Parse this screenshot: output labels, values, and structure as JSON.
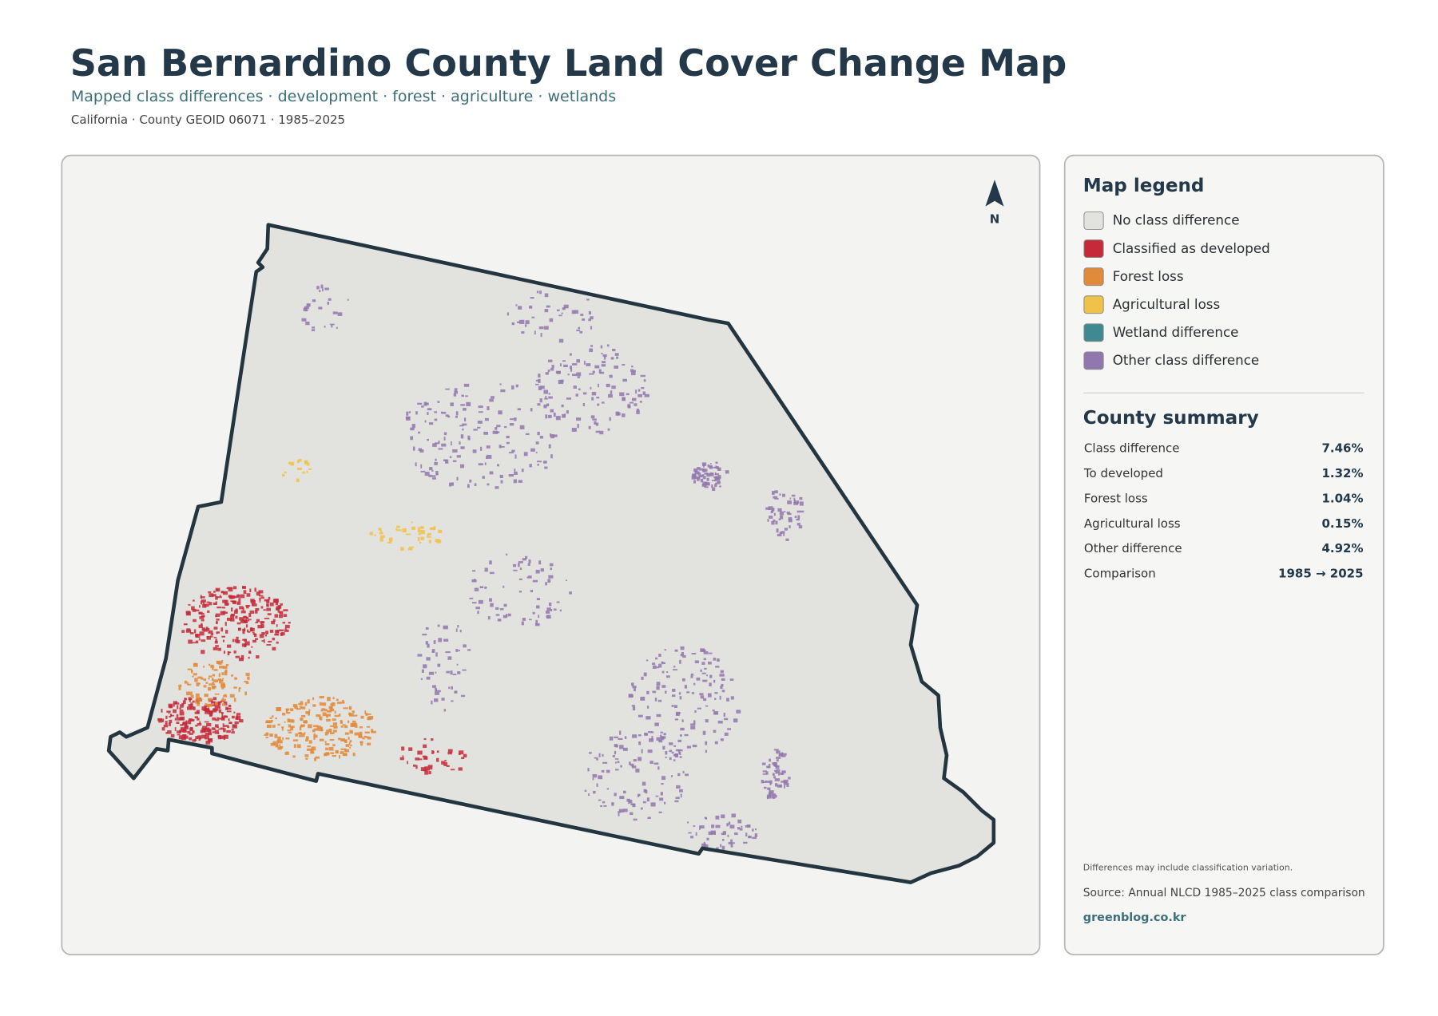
{
  "header": {
    "title": "San Bernardino County Land Cover Change Map",
    "subtitle": "Mapped class differences · development · forest · agriculture · wetlands",
    "meta": "California · County GEOID 06071 · 1985–2025"
  },
  "map": {
    "north_label": "N"
  },
  "legend": {
    "title": "Map legend",
    "items": [
      {
        "label": "No class difference",
        "color": "#e2e3df"
      },
      {
        "label": "Classified as developed",
        "color": "#c62a3a"
      },
      {
        "label": "Forest loss",
        "color": "#e08a3a"
      },
      {
        "label": "Agricultural loss",
        "color": "#f0c24a"
      },
      {
        "label": "Wetland difference",
        "color": "#3f8a92"
      },
      {
        "label": "Other class difference",
        "color": "#9077ad"
      }
    ]
  },
  "summary": {
    "title": "County summary",
    "rows": [
      {
        "label": "Class difference",
        "value": "7.46%"
      },
      {
        "label": "To developed",
        "value": "1.32%"
      },
      {
        "label": "Forest loss",
        "value": "1.04%"
      },
      {
        "label": "Agricultural loss",
        "value": "0.15%"
      },
      {
        "label": "Other difference",
        "value": "4.92%"
      },
      {
        "label": "Comparison",
        "value": "1985 → 2025"
      }
    ]
  },
  "footer": {
    "note": "Differences may include classification variation.",
    "source": "Source: Annual NLCD 1985–2025 class comparison",
    "credit": "greenblog.co.kr"
  }
}
